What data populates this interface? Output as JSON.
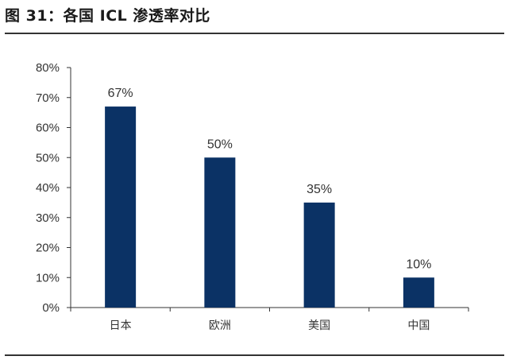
{
  "figure": {
    "title": "图 31：各国 ICL 渗透率对比"
  },
  "colors": {
    "bar": "#0b3265",
    "axis": "#333333"
  },
  "chart_data": {
    "type": "bar",
    "title": "",
    "xlabel": "",
    "ylabel": "",
    "categories": [
      "日本",
      "欧洲",
      "美国",
      "中国"
    ],
    "values": [
      67,
      50,
      35,
      10
    ],
    "value_labels": [
      "67%",
      "50%",
      "35%",
      "10%"
    ],
    "ylim": [
      0,
      80
    ],
    "yticks": [
      0,
      10,
      20,
      30,
      40,
      50,
      60,
      70,
      80
    ],
    "ytick_labels": [
      "0%",
      "10%",
      "20%",
      "30%",
      "40%",
      "50%",
      "60%",
      "70%",
      "80%"
    ],
    "grid": false,
    "legend": "none"
  }
}
